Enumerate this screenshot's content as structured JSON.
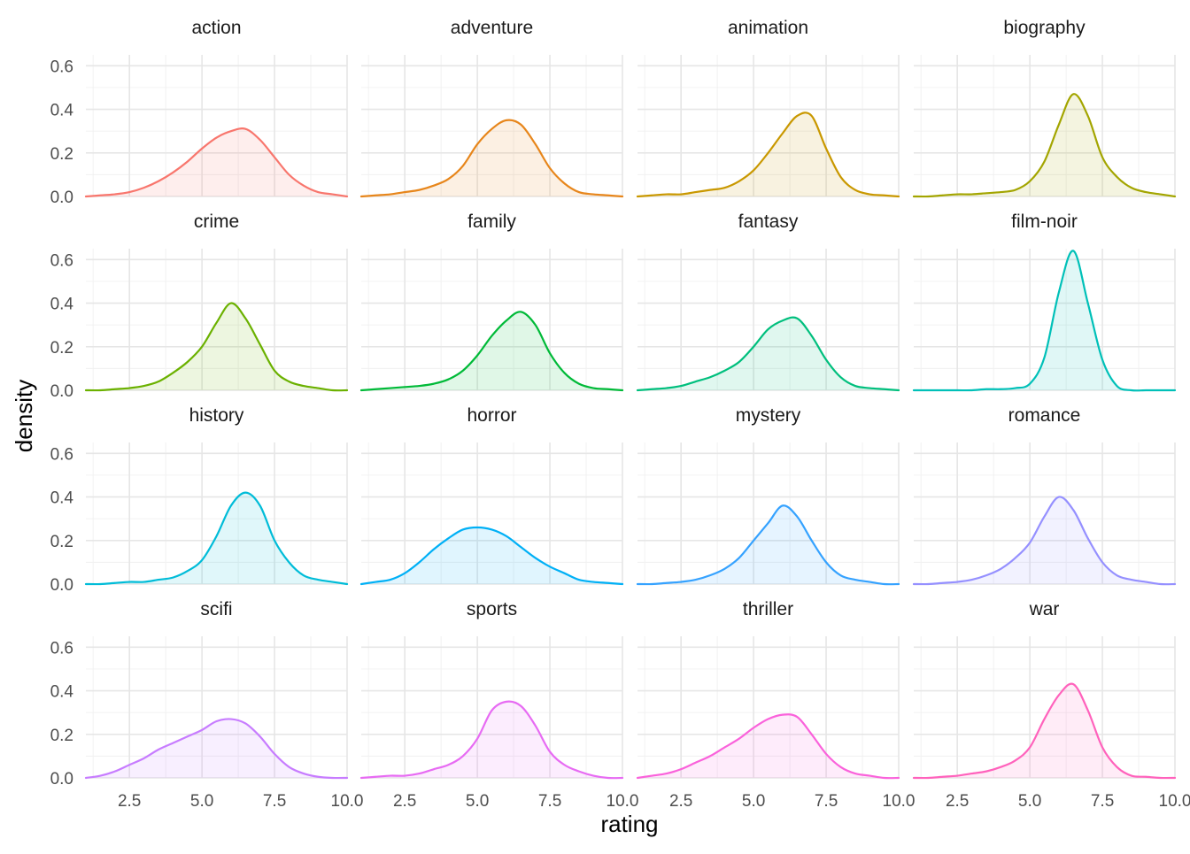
{
  "chart_data": {
    "type": "area",
    "subtype": "faceted density plot",
    "title": "",
    "xlabel": "rating",
    "ylabel": "density",
    "xlim": [
      1,
      10
    ],
    "ylim": [
      0,
      0.65
    ],
    "x_ticks": [
      "2.5",
      "5.0",
      "7.5",
      "10.0"
    ],
    "y_ticks": [
      "0.0",
      "0.2",
      "0.4",
      "0.6"
    ],
    "x_tick_values": [
      2.5,
      5.0,
      7.5,
      10.0
    ],
    "y_tick_values": [
      0.0,
      0.2,
      0.4,
      0.6
    ],
    "grid": true,
    "legend": "none",
    "x": [
      1.0,
      1.5,
      2.0,
      2.5,
      3.0,
      3.5,
      4.0,
      4.5,
      5.0,
      5.5,
      6.0,
      6.5,
      7.0,
      7.5,
      8.0,
      8.5,
      9.0,
      9.5,
      10.0
    ],
    "series": [
      {
        "name": "action",
        "color": "#F8766D",
        "values": [
          0.0,
          0.005,
          0.01,
          0.02,
          0.04,
          0.07,
          0.11,
          0.16,
          0.22,
          0.27,
          0.3,
          0.31,
          0.26,
          0.18,
          0.1,
          0.05,
          0.02,
          0.01,
          0.0
        ]
      },
      {
        "name": "adventure",
        "color": "#E7861B",
        "values": [
          0.0,
          0.005,
          0.01,
          0.02,
          0.03,
          0.05,
          0.08,
          0.14,
          0.24,
          0.31,
          0.35,
          0.33,
          0.24,
          0.13,
          0.06,
          0.02,
          0.01,
          0.005,
          0.0
        ]
      },
      {
        "name": "animation",
        "color": "#C99800",
        "values": [
          0.0,
          0.005,
          0.01,
          0.01,
          0.02,
          0.03,
          0.04,
          0.07,
          0.12,
          0.2,
          0.29,
          0.37,
          0.37,
          0.22,
          0.09,
          0.03,
          0.01,
          0.005,
          0.0
        ]
      },
      {
        "name": "biography",
        "color": "#A3A500",
        "values": [
          0.0,
          0.0,
          0.005,
          0.01,
          0.01,
          0.015,
          0.02,
          0.03,
          0.07,
          0.16,
          0.33,
          0.47,
          0.37,
          0.18,
          0.09,
          0.04,
          0.02,
          0.01,
          0.0
        ]
      },
      {
        "name": "crime",
        "color": "#6BB100",
        "values": [
          0.0,
          0.0,
          0.005,
          0.01,
          0.02,
          0.04,
          0.08,
          0.13,
          0.2,
          0.31,
          0.4,
          0.33,
          0.21,
          0.09,
          0.04,
          0.02,
          0.01,
          0.0,
          0.0
        ]
      },
      {
        "name": "family",
        "color": "#00BA38",
        "values": [
          0.0,
          0.005,
          0.01,
          0.015,
          0.02,
          0.03,
          0.05,
          0.09,
          0.16,
          0.25,
          0.32,
          0.36,
          0.3,
          0.17,
          0.08,
          0.03,
          0.01,
          0.005,
          0.0
        ]
      },
      {
        "name": "fantasy",
        "color": "#00BF7D",
        "values": [
          0.0,
          0.005,
          0.01,
          0.02,
          0.04,
          0.06,
          0.09,
          0.13,
          0.2,
          0.28,
          0.32,
          0.33,
          0.25,
          0.14,
          0.06,
          0.02,
          0.01,
          0.005,
          0.0
        ]
      },
      {
        "name": "film-noir",
        "color": "#00C0B8",
        "values": [
          0.0,
          0.0,
          0.0,
          0.0,
          0.0,
          0.005,
          0.005,
          0.01,
          0.03,
          0.15,
          0.45,
          0.64,
          0.4,
          0.14,
          0.02,
          0.0,
          0.0,
          0.0,
          0.0
        ]
      },
      {
        "name": "history",
        "color": "#00BCD8",
        "values": [
          0.0,
          0.0,
          0.005,
          0.01,
          0.01,
          0.02,
          0.03,
          0.06,
          0.11,
          0.22,
          0.36,
          0.42,
          0.36,
          0.2,
          0.1,
          0.04,
          0.02,
          0.01,
          0.0
        ]
      },
      {
        "name": "horror",
        "color": "#00B0F6",
        "values": [
          0.0,
          0.01,
          0.02,
          0.05,
          0.1,
          0.16,
          0.21,
          0.25,
          0.26,
          0.25,
          0.22,
          0.17,
          0.12,
          0.08,
          0.05,
          0.02,
          0.01,
          0.005,
          0.0
        ]
      },
      {
        "name": "mystery",
        "color": "#35A2FF",
        "values": [
          0.0,
          0.0,
          0.005,
          0.01,
          0.02,
          0.04,
          0.07,
          0.12,
          0.2,
          0.28,
          0.36,
          0.31,
          0.2,
          0.1,
          0.04,
          0.02,
          0.01,
          0.0,
          0.0
        ]
      },
      {
        "name": "romance",
        "color": "#9590FF",
        "values": [
          0.0,
          0.0,
          0.005,
          0.01,
          0.02,
          0.04,
          0.07,
          0.12,
          0.19,
          0.31,
          0.4,
          0.34,
          0.21,
          0.1,
          0.04,
          0.02,
          0.01,
          0.0,
          0.0
        ]
      },
      {
        "name": "scifi",
        "color": "#C77CFF",
        "values": [
          0.0,
          0.01,
          0.03,
          0.06,
          0.09,
          0.13,
          0.16,
          0.19,
          0.22,
          0.26,
          0.27,
          0.25,
          0.19,
          0.11,
          0.05,
          0.02,
          0.005,
          0.0,
          0.0
        ]
      },
      {
        "name": "sports",
        "color": "#E76BF3",
        "values": [
          0.0,
          0.005,
          0.01,
          0.01,
          0.02,
          0.04,
          0.06,
          0.1,
          0.18,
          0.31,
          0.35,
          0.33,
          0.24,
          0.12,
          0.06,
          0.03,
          0.01,
          0.0,
          0.0
        ]
      },
      {
        "name": "thriller",
        "color": "#FA62DB",
        "values": [
          0.0,
          0.01,
          0.02,
          0.04,
          0.07,
          0.1,
          0.14,
          0.18,
          0.23,
          0.27,
          0.29,
          0.28,
          0.2,
          0.11,
          0.05,
          0.02,
          0.01,
          0.0,
          0.0
        ]
      },
      {
        "name": "war",
        "color": "#FF62BC",
        "values": [
          0.0,
          0.0,
          0.005,
          0.01,
          0.02,
          0.03,
          0.05,
          0.08,
          0.14,
          0.27,
          0.38,
          0.43,
          0.31,
          0.14,
          0.05,
          0.01,
          0.005,
          0.0,
          0.0
        ]
      }
    ]
  }
}
